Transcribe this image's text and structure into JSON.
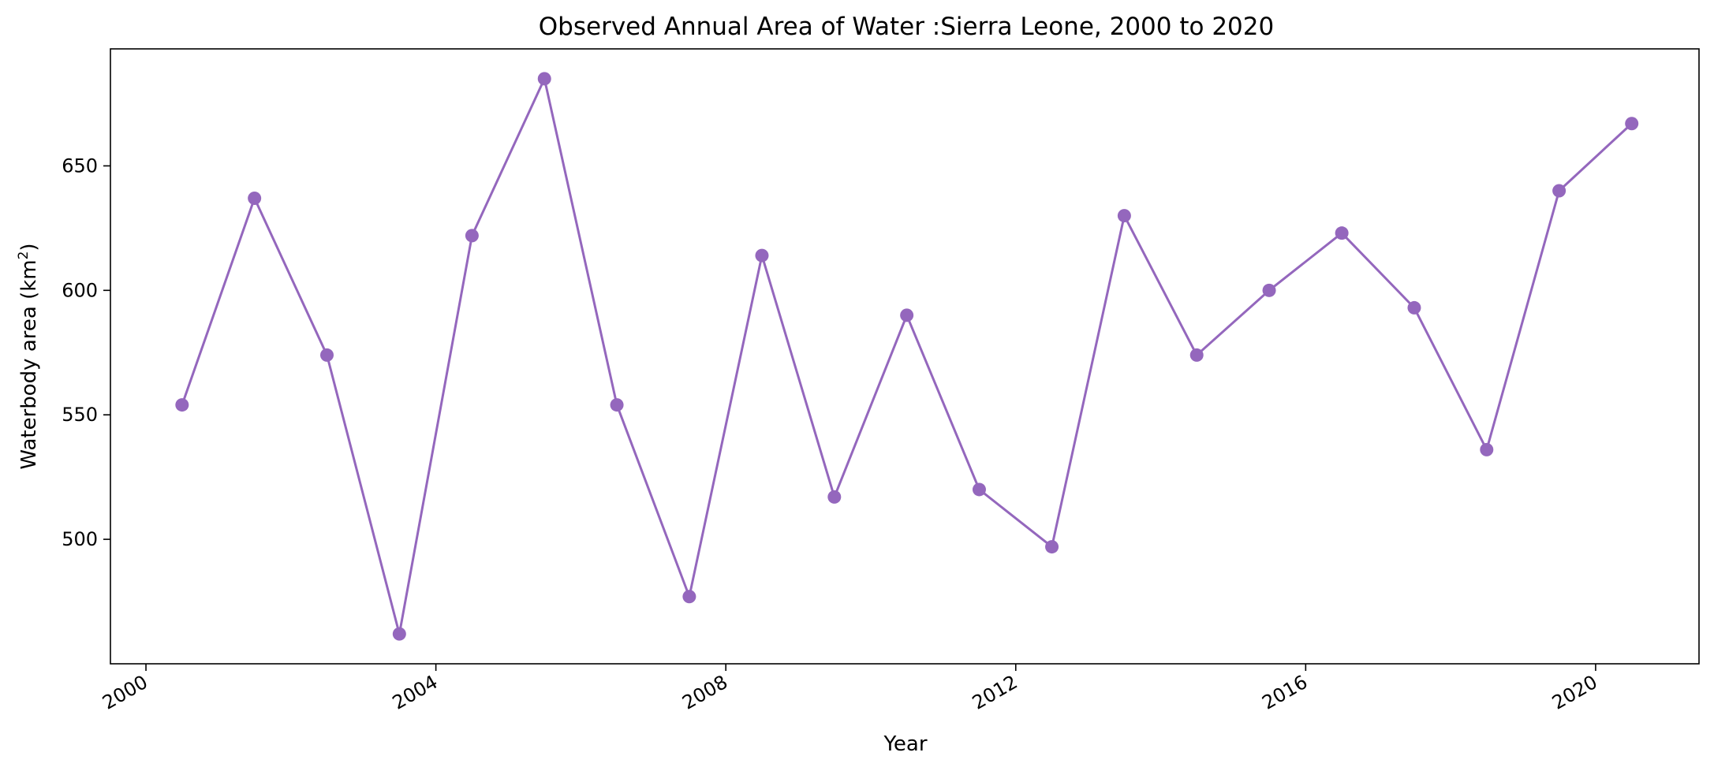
{
  "chart_data": {
    "type": "line",
    "title": "Observed Annual Area of Water :Sierra Leone, 2000 to 2020",
    "xlabel": "Year",
    "ylabel_main": "Waterbody area (km",
    "ylabel_sup": "2",
    "ylabel_close": ")",
    "xlim": [
      "1999-07-06",
      "2021-06-05"
    ],
    "ylim": [
      450,
      697
    ],
    "xticks": [
      "2000",
      "2004",
      "2008",
      "2012",
      "2016",
      "2020"
    ],
    "yticks": [
      500,
      550,
      600,
      650
    ],
    "grid": false,
    "series": [
      {
        "color": "#9467bd",
        "marker": "circle",
        "x": [
          "2000-07-01",
          "2001-07-01",
          "2002-07-01",
          "2003-07-01",
          "2004-07-01",
          "2005-07-01",
          "2006-07-01",
          "2007-07-01",
          "2008-07-01",
          "2009-07-01",
          "2010-07-01",
          "2011-07-01",
          "2012-07-01",
          "2013-07-01",
          "2014-07-01",
          "2015-07-01",
          "2016-07-01",
          "2017-07-01",
          "2018-07-01",
          "2019-07-01",
          "2020-07-01"
        ],
        "y": [
          554,
          637,
          574,
          462,
          622,
          685,
          554,
          477,
          614,
          517,
          590,
          520,
          497,
          630,
          574,
          600,
          623,
          593,
          536,
          640,
          667
        ]
      }
    ]
  }
}
